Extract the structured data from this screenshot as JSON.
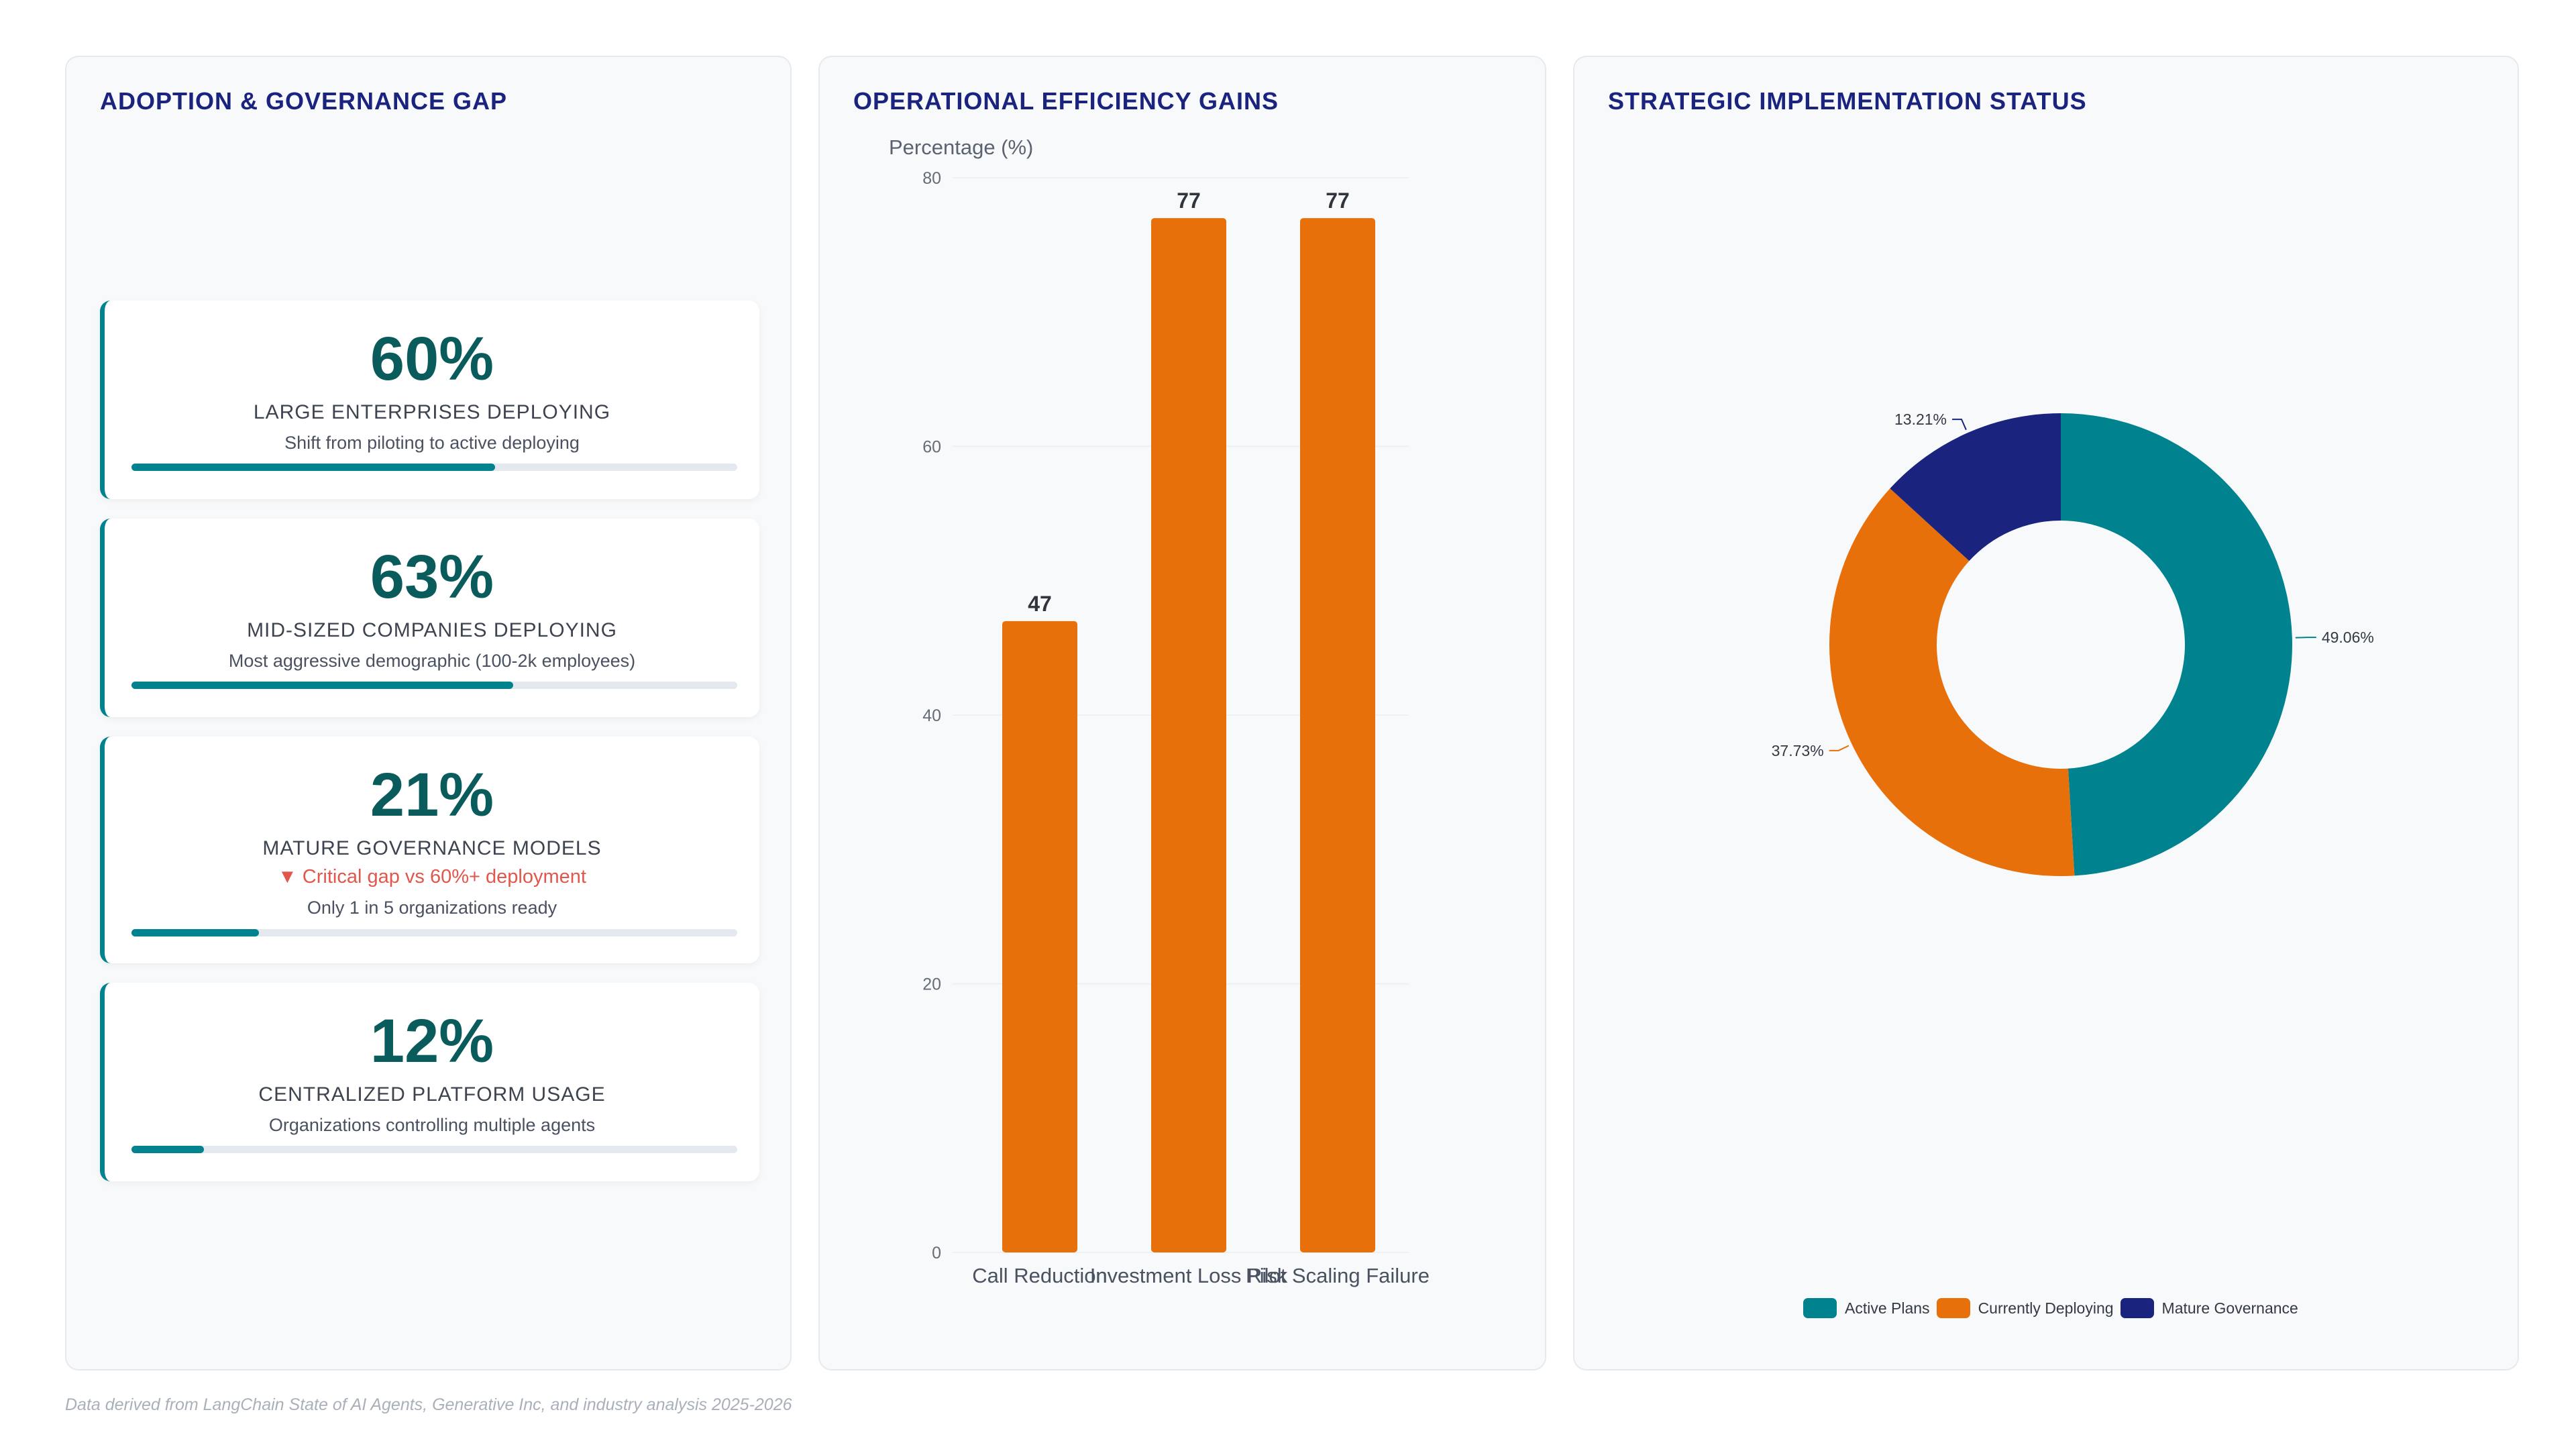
{
  "adoption": {
    "title": "ADOPTION & GOVERNANCE GAP",
    "cards": [
      {
        "value": "60%",
        "label": "LARGE ENTERPRISES DEPLOYING",
        "sub": "Shift from piloting to active deploying",
        "alert": "",
        "progress": 0.6
      },
      {
        "value": "63%",
        "label": "MID-SIZED COMPANIES DEPLOYING",
        "sub": "Most aggressive demographic (100-2k employees)",
        "alert": "",
        "progress": 0.63
      },
      {
        "value": "21%",
        "label": "MATURE GOVERNANCE MODELS",
        "sub": "Only 1 in 5 organizations ready",
        "alert": "▼ Critical gap vs 60%+ deployment",
        "progress": 0.21
      },
      {
        "value": "12%",
        "label": "CENTRALIZED PLATFORM USAGE",
        "sub": "Organizations controlling multiple agents",
        "alert": "",
        "progress": 0.12
      }
    ]
  },
  "efficiency": {
    "title": "OPERATIONAL EFFICIENCY GAINS"
  },
  "status": {
    "title": "STRATEGIC IMPLEMENTATION STATUS"
  },
  "footer": "Data derived from LangChain State of AI Agents, Generative Inc, and industry analysis 2025-2026",
  "colors": {
    "teal": "#00838f",
    "orange": "#e8700a",
    "navy": "#1a237e",
    "title": "#1a237e"
  },
  "chart_data": [
    {
      "type": "bar",
      "categories": [
        "Call Reduction",
        "Investment Loss Risk",
        "Pilot Scaling Failure"
      ],
      "values": [
        47,
        77,
        77
      ],
      "ylabel": "Percentage (%)",
      "ylim": [
        0,
        80
      ],
      "yticks": [
        0,
        20,
        40,
        60,
        80
      ],
      "grid": true,
      "color": "#e8700a"
    },
    {
      "type": "pie",
      "donut": true,
      "labels": [
        "Active Plans",
        "Currently Deploying",
        "Mature Governance"
      ],
      "values": [
        49.06,
        37.73,
        13.21
      ],
      "value_labels": [
        "49.06%",
        "37.73%",
        "13.21%"
      ],
      "colors": [
        "#00838f",
        "#e8700a",
        "#1a237e"
      ],
      "legend": "bottom"
    }
  ]
}
